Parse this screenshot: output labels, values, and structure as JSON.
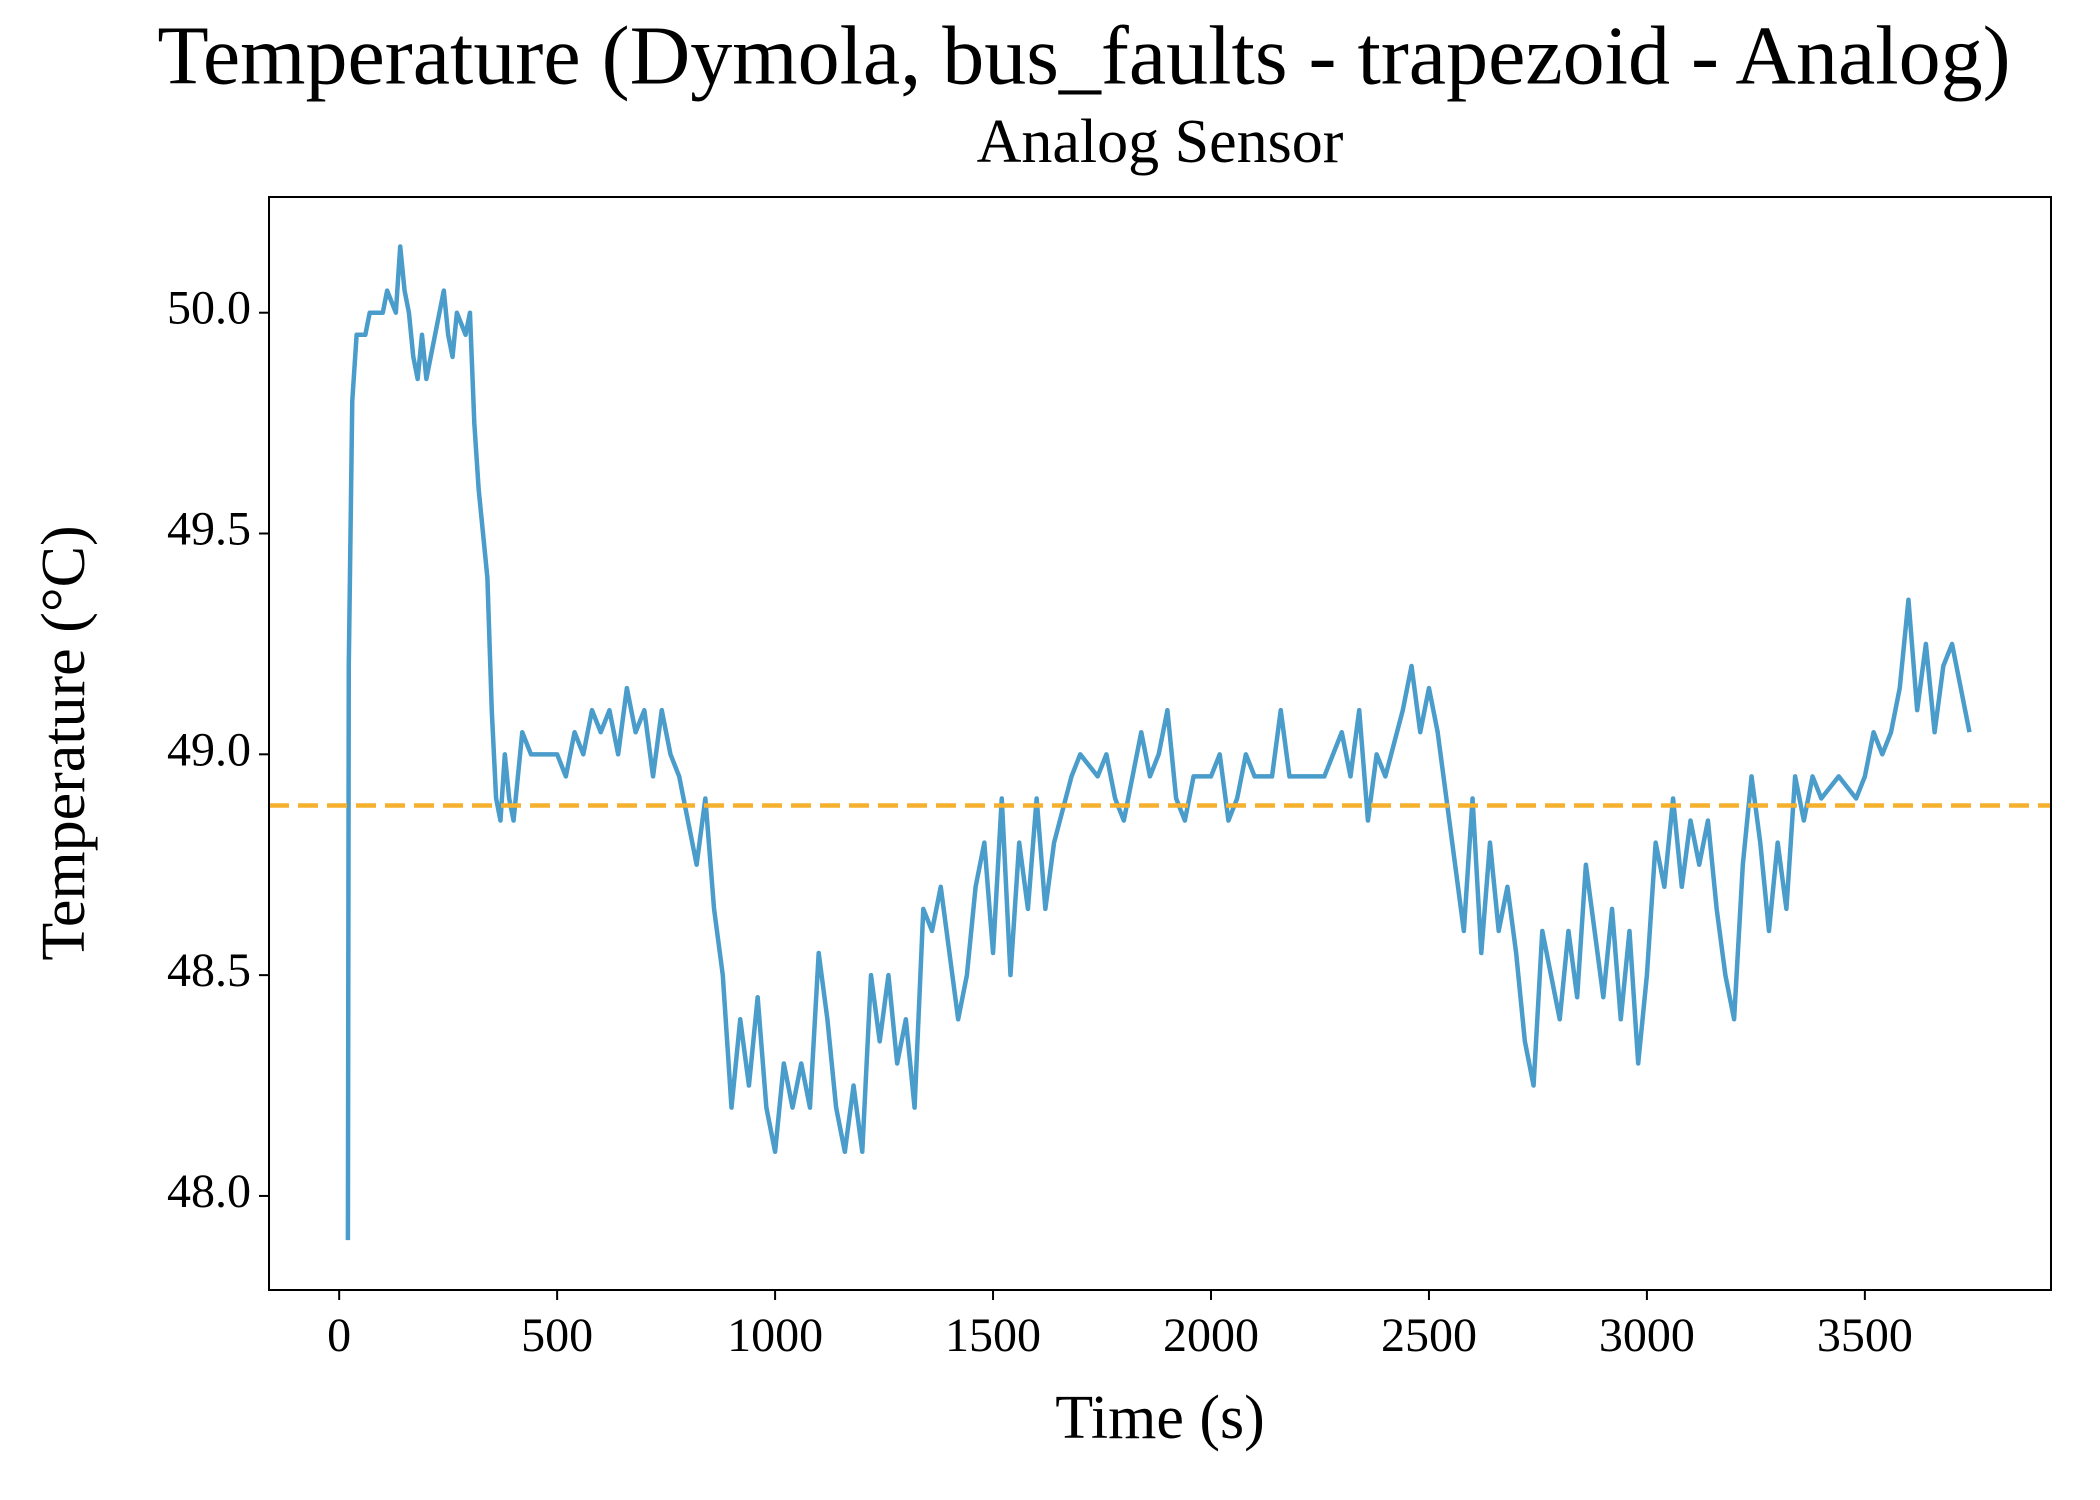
{
  "chart_data": {
    "type": "line",
    "title": "Temperature (Dymola, bus_faults - trapezoid - Analog)",
    "subtitle": "Analog Sensor",
    "x_label": "Time (s)",
    "y_label": "Temperature (°C)",
    "color": "#4a9ccb",
    "x": [
      20,
      22,
      30,
      40,
      60,
      70,
      100,
      110,
      130,
      140,
      150,
      160,
      170,
      180,
      190,
      200,
      210,
      230,
      240,
      250,
      260,
      270,
      290,
      300,
      310,
      320,
      330,
      340,
      350,
      360,
      370,
      380,
      390,
      400,
      420,
      440,
      500,
      520,
      540,
      560,
      580,
      600,
      620,
      640,
      660,
      680,
      700,
      720,
      740,
      760,
      780,
      800,
      820,
      840,
      860,
      880,
      900,
      920,
      940,
      960,
      980,
      1000,
      1020,
      1040,
      1060,
      1080,
      1100,
      1120,
      1140,
      1160,
      1180,
      1200,
      1220,
      1240,
      1260,
      1280,
      1300,
      1320,
      1340,
      1360,
      1380,
      1400,
      1420,
      1440,
      1460,
      1480,
      1500,
      1520,
      1540,
      1560,
      1580,
      1600,
      1620,
      1640,
      1680,
      1700,
      1740,
      1760,
      1780,
      1800,
      1820,
      1840,
      1860,
      1880,
      1900,
      1920,
      1940,
      1960,
      2000,
      2020,
      2040,
      2060,
      2080,
      2100,
      2140,
      2160,
      2180,
      2220,
      2260,
      2300,
      2320,
      2340,
      2360,
      2380,
      2400,
      2440,
      2460,
      2480,
      2500,
      2520,
      2540,
      2560,
      2580,
      2600,
      2620,
      2640,
      2660,
      2680,
      2700,
      2720,
      2740,
      2760,
      2780,
      2800,
      2820,
      2840,
      2860,
      2880,
      2900,
      2920,
      2940,
      2960,
      2980,
      3000,
      3020,
      3040,
      3060,
      3080,
      3100,
      3120,
      3140,
      3160,
      3180,
      3200,
      3220,
      3240,
      3260,
      3280,
      3300,
      3320,
      3340,
      3360,
      3380,
      3400,
      3440,
      3480,
      3500,
      3520,
      3540,
      3560,
      3580,
      3600,
      3620,
      3640,
      3660,
      3680,
      3700,
      3720,
      3740
    ],
    "values": [
      47.9,
      49.2,
      49.8,
      49.95,
      49.95,
      50.0,
      50.0,
      50.05,
      50.0,
      50.15,
      50.05,
      50.0,
      49.9,
      49.85,
      49.95,
      49.85,
      49.9,
      50.0,
      50.05,
      49.95,
      49.9,
      50.0,
      49.95,
      50.0,
      49.75,
      49.6,
      49.5,
      49.4,
      49.1,
      48.9,
      48.85,
      49.0,
      48.9,
      48.85,
      49.05,
      49.0,
      49.0,
      48.95,
      49.05,
      49.0,
      49.1,
      49.05,
      49.1,
      49.0,
      49.15,
      49.05,
      49.1,
      48.95,
      49.1,
      49.0,
      48.95,
      48.85,
      48.75,
      48.9,
      48.65,
      48.5,
      48.2,
      48.4,
      48.25,
      48.45,
      48.2,
      48.1,
      48.3,
      48.2,
      48.3,
      48.2,
      48.55,
      48.4,
      48.2,
      48.1,
      48.25,
      48.1,
      48.5,
      48.35,
      48.5,
      48.3,
      48.4,
      48.2,
      48.65,
      48.6,
      48.7,
      48.55,
      48.4,
      48.5,
      48.7,
      48.8,
      48.55,
      48.9,
      48.5,
      48.8,
      48.65,
      48.9,
      48.65,
      48.8,
      48.95,
      49.0,
      48.95,
      49.0,
      48.9,
      48.85,
      48.95,
      49.05,
      48.95,
      49.0,
      49.1,
      48.9,
      48.85,
      48.95,
      48.95,
      49.0,
      48.85,
      48.9,
      49.0,
      48.95,
      48.95,
      49.1,
      48.95,
      48.95,
      48.95,
      49.05,
      48.95,
      49.1,
      48.85,
      49.0,
      48.95,
      49.1,
      49.2,
      49.05,
      49.15,
      49.05,
      48.9,
      48.75,
      48.6,
      48.9,
      48.55,
      48.8,
      48.6,
      48.7,
      48.55,
      48.35,
      48.25,
      48.6,
      48.5,
      48.4,
      48.6,
      48.45,
      48.75,
      48.6,
      48.45,
      48.65,
      48.4,
      48.6,
      48.3,
      48.5,
      48.8,
      48.7,
      48.9,
      48.7,
      48.85,
      48.75,
      48.85,
      48.65,
      48.5,
      48.4,
      48.75,
      48.95,
      48.8,
      48.6,
      48.8,
      48.65,
      48.95,
      48.85,
      48.95,
      48.9,
      48.95,
      48.9,
      48.95,
      49.05,
      49.0,
      49.05,
      49.15,
      49.35,
      49.1,
      49.25,
      49.05,
      49.2,
      49.25,
      49.15,
      49.05
    ],
    "hline": {
      "y": 48.884,
      "color": "#f5b02e",
      "dash": true
    },
    "xlim": [
      -161,
      3927
    ],
    "ylim": [
      47.787,
      50.262
    ],
    "xticks": [
      0,
      500,
      1000,
      1500,
      2000,
      2500,
      3000,
      3500
    ],
    "yticks": [
      {
        "value": 48,
        "label": "48.0"
      },
      48.5,
      {
        "value": 49,
        "label": "49.0"
      },
      49.5,
      {
        "value": 50,
        "label": "50.0"
      }
    ],
    "grid": false
  }
}
